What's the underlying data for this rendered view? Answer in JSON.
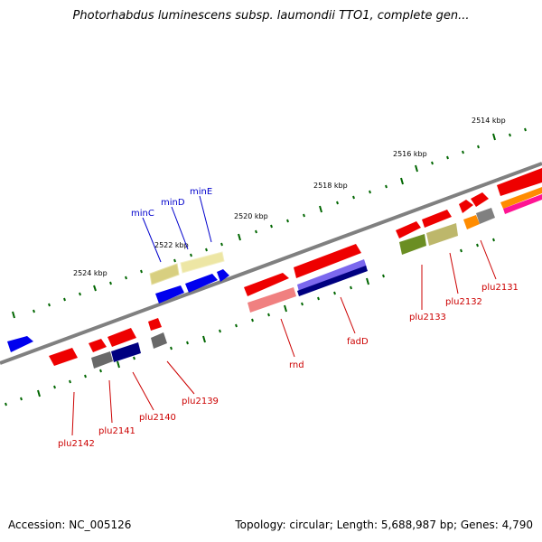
{
  "title": "Photorhabdus luminescens subsp. laumondii TTO1, complete gen...",
  "footer": {
    "accession": "Accession: NC_005126",
    "topology": "Topology: circular; Length: 5,688,987 bp; Genes: 4,790"
  },
  "scale_labels": [
    "2524 kbp",
    "2522 kbp",
    "2520 kbp",
    "2518 kbp",
    "2516 kbp",
    "2514 kbp"
  ],
  "gene_labels": {
    "top": [
      "minC",
      "minD",
      "minE"
    ],
    "bottom": [
      "plu2142",
      "plu2141",
      "plu2140",
      "plu2139",
      "rnd",
      "fadD",
      "plu2133",
      "plu2132",
      "plu2131"
    ]
  },
  "colors": {
    "label_top": "#0000cc",
    "label_bottom": "#cc0000",
    "tick": "#006600",
    "backbone": "#808080"
  }
}
